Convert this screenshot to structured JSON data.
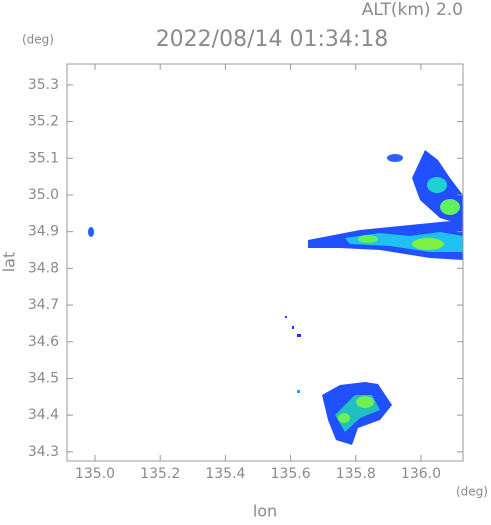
{
  "chart_data": {
    "type": "map",
    "title": "2022/08/14 01:34:18",
    "subtitle": "ALT(km) 2.0",
    "x_label": "lon",
    "y_label": "lat",
    "x_unit": "(deg)",
    "y_unit": "(deg)",
    "xlim": [
      134.914,
      136.129
    ],
    "ylim": [
      34.275,
      35.357
    ],
    "xticks": [
      {
        "value": 135.0,
        "label": "135.0"
      },
      135.2,
      135.4,
      135.6,
      135.8,
      {
        "value": 136.0,
        "label": "136.0"
      }
    ],
    "yticks": [
      34.3,
      34.4,
      34.5,
      34.6,
      34.7,
      34.8,
      34.9,
      {
        "value": 35.0,
        "label": "35.0"
      },
      35.1,
      35.2,
      35.3
    ]
  }
}
